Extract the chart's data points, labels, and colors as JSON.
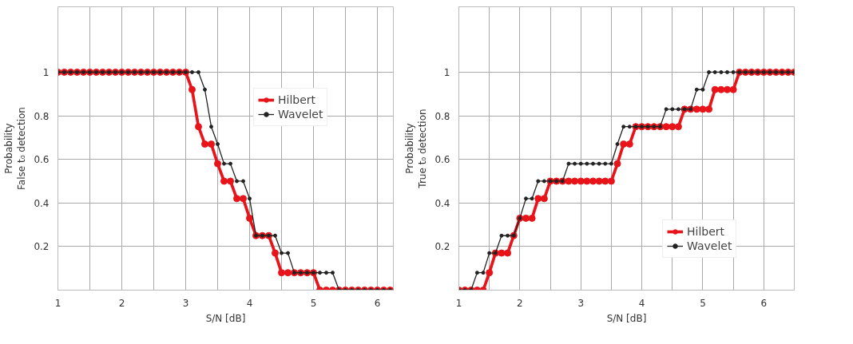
{
  "chart_data": [
    {
      "type": "line",
      "xlabel": "S/N [dB]",
      "ylabel": "Probability\nFalse t₀ detection",
      "x": [
        1.0,
        1.1,
        1.2,
        1.3,
        1.4,
        1.5,
        1.6,
        1.7,
        1.8,
        1.9,
        2.0,
        2.1,
        2.2,
        2.3,
        2.4,
        2.5,
        2.6,
        2.7,
        2.8,
        2.9,
        3.0,
        3.1,
        3.2,
        3.3,
        3.4,
        3.5,
        3.6,
        3.7,
        3.8,
        3.9,
        4.0,
        4.1,
        4.2,
        4.3,
        4.4,
        4.5,
        4.6,
        4.7,
        4.8,
        4.9,
        5.0,
        5.1,
        5.2,
        5.3,
        5.4,
        5.5,
        5.6,
        5.7,
        5.8,
        5.9,
        6.0,
        6.1,
        6.2
      ],
      "series": [
        {
          "name": "Hilbert",
          "color": "#e8141a",
          "values": [
            1,
            1,
            1,
            1,
            1,
            1,
            1,
            1,
            1,
            1,
            1,
            1,
            1,
            1,
            1,
            1,
            1,
            1,
            1,
            1,
            1,
            0.92,
            0.75,
            0.67,
            0.67,
            0.58,
            0.5,
            0.5,
            0.42,
            0.42,
            0.33,
            0.25,
            0.25,
            0.25,
            0.17,
            0.08,
            0.08,
            0.08,
            0.08,
            0.08,
            0.08,
            0,
            0,
            0,
            0,
            0,
            0,
            0,
            0,
            0,
            0,
            0,
            0
          ]
        },
        {
          "name": "Wavelet",
          "color": "#222222",
          "values": [
            1,
            1,
            1,
            1,
            1,
            1,
            1,
            1,
            1,
            1,
            1,
            1,
            1,
            1,
            1,
            1,
            1,
            1,
            1,
            1,
            1,
            1,
            1,
            0.92,
            0.75,
            0.67,
            0.58,
            0.58,
            0.5,
            0.5,
            0.42,
            0.25,
            0.25,
            0.25,
            0.25,
            0.17,
            0.17,
            0.08,
            0.08,
            0.08,
            0.08,
            0.08,
            0.08,
            0.08,
            0,
            0,
            0,
            0,
            0,
            0,
            0,
            0,
            0
          ]
        }
      ],
      "xlim": [
        1,
        6.25
      ],
      "ylim": [
        0,
        1.3
      ],
      "xticks": [
        1,
        {
          "value": 1.5,
          "label": null
        },
        2,
        {
          "value": 2.5,
          "label": null
        },
        3,
        {
          "value": 3.5,
          "label": null
        },
        4,
        {
          "value": 4.5,
          "label": null
        },
        5,
        {
          "value": 5.5,
          "label": null
        },
        6
      ],
      "yticks": [
        0.2,
        0.4,
        0.6,
        0.8,
        1
      ],
      "grid": true,
      "legend": "top right",
      "marker": "circle"
    },
    {
      "type": "line",
      "xlabel": "S/N [dB]",
      "ylabel": "Probability\nTrue t₀ detection",
      "x": [
        1.0,
        1.1,
        1.2,
        1.3,
        1.4,
        1.5,
        1.6,
        1.7,
        1.8,
        1.9,
        2.0,
        2.1,
        2.2,
        2.3,
        2.4,
        2.5,
        2.6,
        2.7,
        2.8,
        2.9,
        3.0,
        3.1,
        3.2,
        3.3,
        3.4,
        3.5,
        3.6,
        3.7,
        3.8,
        3.9,
        4.0,
        4.1,
        4.2,
        4.3,
        4.4,
        4.5,
        4.6,
        4.7,
        4.8,
        4.9,
        5.0,
        5.1,
        5.2,
        5.3,
        5.4,
        5.5,
        5.6,
        5.7,
        5.8,
        5.9,
        6.0,
        6.1,
        6.2,
        6.3,
        6.4,
        6.5
      ],
      "series": [
        {
          "name": "Hilbert",
          "color": "#e8141a",
          "values": [
            0,
            0,
            0,
            0,
            0,
            0.08,
            0.17,
            0.17,
            0.17,
            0.25,
            0.33,
            0.33,
            0.33,
            0.42,
            0.42,
            0.5,
            0.5,
            0.5,
            0.5,
            0.5,
            0.5,
            0.5,
            0.5,
            0.5,
            0.5,
            0.5,
            0.58,
            0.67,
            0.67,
            0.75,
            0.75,
            0.75,
            0.75,
            0.75,
            0.75,
            0.75,
            0.75,
            0.83,
            0.83,
            0.83,
            0.83,
            0.83,
            0.92,
            0.92,
            0.92,
            0.92,
            1,
            1,
            1,
            1,
            1,
            1,
            1,
            1,
            1,
            1
          ]
        },
        {
          "name": "Wavelet",
          "color": "#222222",
          "values": [
            0,
            0,
            0,
            0.08,
            0.08,
            0.17,
            0.17,
            0.25,
            0.25,
            0.25,
            0.33,
            0.42,
            0.42,
            0.5,
            0.5,
            0.5,
            0.5,
            0.5,
            0.58,
            0.58,
            0.58,
            0.58,
            0.58,
            0.58,
            0.58,
            0.58,
            0.67,
            0.75,
            0.75,
            0.75,
            0.75,
            0.75,
            0.75,
            0.75,
            0.83,
            0.83,
            0.83,
            0.83,
            0.83,
            0.92,
            0.92,
            1,
            1,
            1,
            1,
            1,
            1,
            1,
            1,
            1,
            1,
            1,
            1,
            1,
            1,
            1
          ]
        }
      ],
      "xlim": [
        1,
        6.5
      ],
      "ylim": [
        0,
        1.3
      ],
      "xticks": [
        1,
        {
          "value": 1.5,
          "label": null
        },
        2,
        {
          "value": 2.5,
          "label": null
        },
        3,
        {
          "value": 3.5,
          "label": null
        },
        4,
        {
          "value": 4.5,
          "label": null
        },
        5,
        {
          "value": 5.5,
          "label": null
        },
        6
      ],
      "yticks": [
        0.2,
        0.4,
        0.6,
        0.8,
        1
      ],
      "grid": true,
      "legend": "bottom right",
      "marker": "circle"
    }
  ]
}
